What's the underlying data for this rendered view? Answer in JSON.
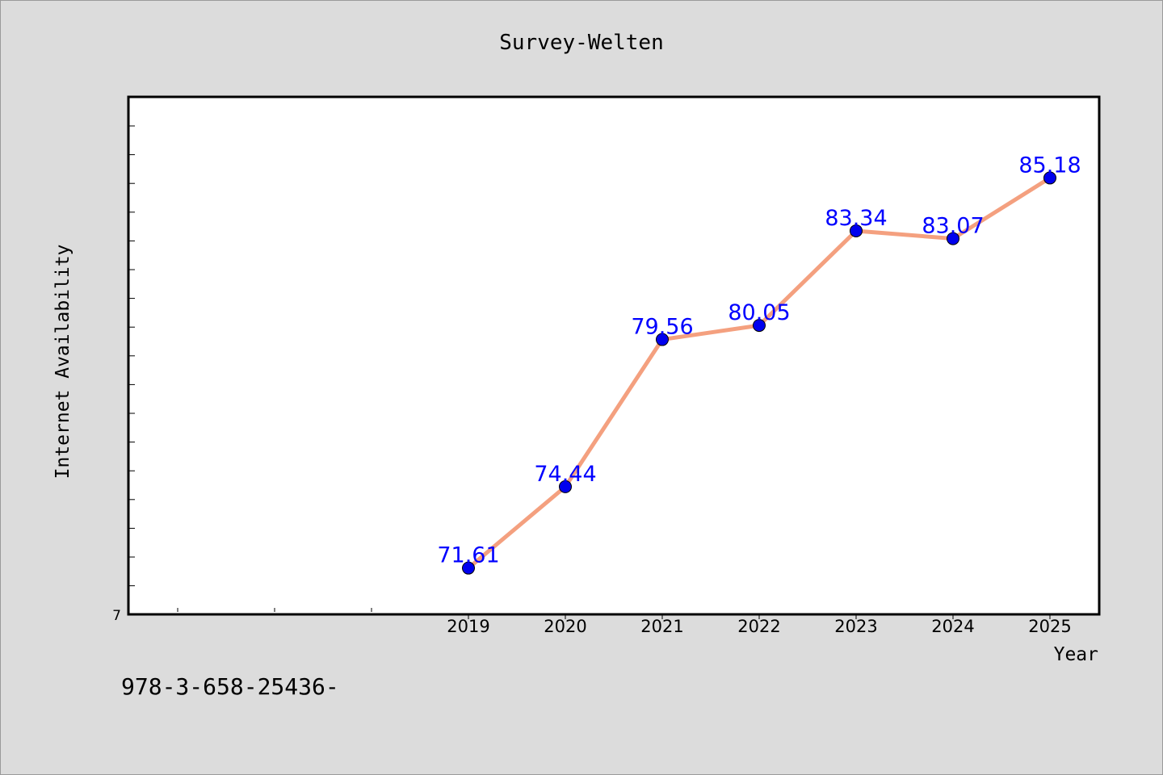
{
  "chart_data": {
    "type": "line",
    "title": "Survey-Welten",
    "xlabel": "Year",
    "ylabel": "Internet Availability",
    "categories": [
      "2019",
      "2020",
      "2021",
      "2022",
      "2023",
      "2024",
      "2025"
    ],
    "values": [
      71.61,
      74.44,
      79.56,
      80.05,
      83.34,
      83.07,
      85.18
    ],
    "data_labels": [
      "71.61",
      "74.44",
      "79.56",
      "80.05",
      "83.34",
      "83.07",
      "85.18"
    ],
    "y_tick_labels": [
      "7"
    ],
    "ylim": [
      70,
      88
    ],
    "grid": false,
    "colors": {
      "line": "#f4a07f",
      "marker": "#0000ee",
      "data_label": "#0000ff",
      "background": "#dcdcdc",
      "plot_background": "#ffffff"
    }
  },
  "footer_text": "978-3-658-25436-"
}
